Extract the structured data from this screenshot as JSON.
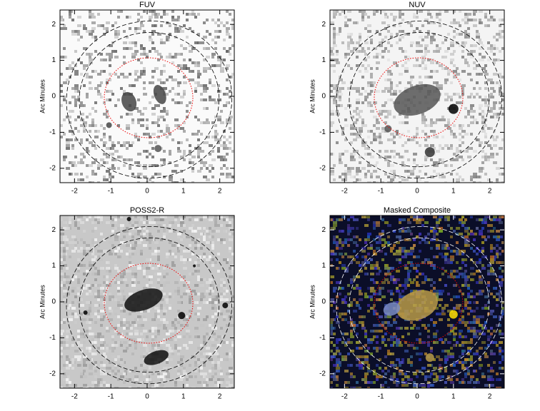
{
  "chart_data": [
    {
      "type": "image",
      "title": "FUV",
      "ylabel": "Arc Minutes",
      "xlim": [
        -2.4,
        2.4
      ],
      "ylim": [
        -2.4,
        2.4
      ],
      "xticks": [
        -2,
        -1,
        0,
        1,
        2
      ],
      "yticks": [
        -2,
        -1,
        0,
        1,
        2
      ]
    },
    {
      "type": "image",
      "title": "NUV",
      "ylabel": "Arc Minutes",
      "xlim": [
        -2.4,
        2.4
      ],
      "ylim": [
        -2.4,
        2.4
      ],
      "xticks": [
        -2,
        -1,
        0,
        1,
        2
      ],
      "yticks": [
        -2,
        -1,
        0,
        1,
        2
      ]
    },
    {
      "type": "image",
      "title": "POSS2-R",
      "ylabel": "Arc Minutes",
      "xlim": [
        -2.4,
        2.4
      ],
      "ylim": [
        -2.4,
        2.4
      ],
      "xticks": [
        -2,
        -1,
        0,
        1,
        2
      ],
      "yticks": [
        -2,
        -1,
        0,
        1,
        2
      ]
    },
    {
      "type": "image",
      "title": "Masked Composite",
      "ylabel": "Arc Minutes",
      "xlim": [
        -2.4,
        2.4
      ],
      "ylim": [
        -2.4,
        2.4
      ],
      "xticks": [
        -2,
        -1,
        0,
        1,
        2
      ],
      "yticks": [
        -2,
        -1,
        0,
        1,
        2
      ]
    }
  ]
}
